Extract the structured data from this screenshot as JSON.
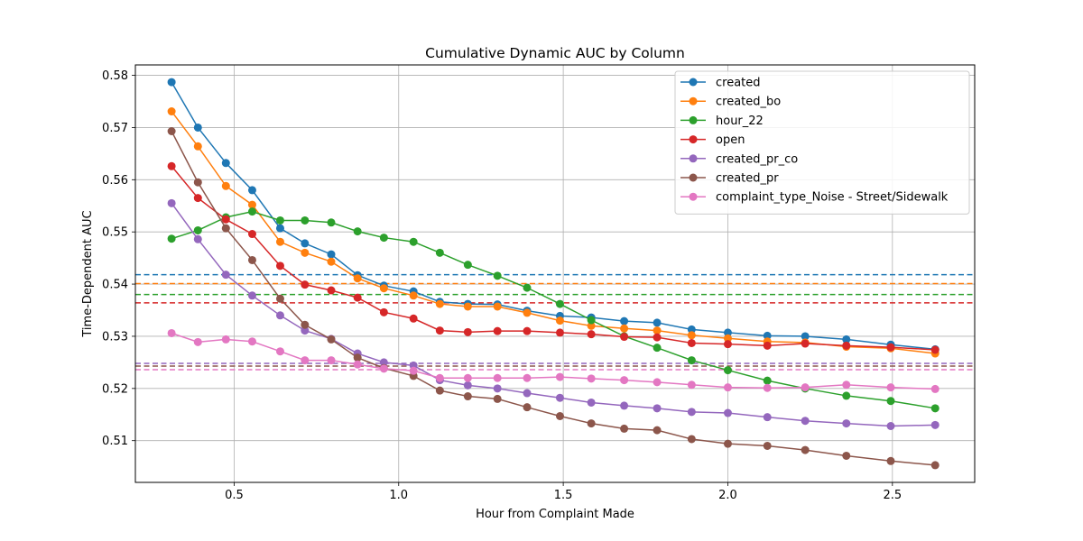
{
  "chart_data": {
    "type": "line",
    "title": "Cumulative Dynamic AUC by Column",
    "xlabel": "Hour from Complaint Made",
    "ylabel": "Time-Dependent AUC",
    "xlim": [
      0.2,
      2.75
    ],
    "ylim": [
      0.502,
      0.582
    ],
    "xticks": [
      0.5,
      1.0,
      1.5,
      2.0,
      2.5
    ],
    "xtick_labels": [
      "0.5",
      "1.0",
      "1.5",
      "2.0",
      "2.5"
    ],
    "yticks": [
      0.51,
      0.52,
      0.53,
      0.54,
      0.55,
      0.56,
      0.57,
      0.58
    ],
    "ytick_labels": [
      "0.51",
      "0.52",
      "0.53",
      "0.54",
      "0.55",
      "0.56",
      "0.57",
      "0.58"
    ],
    "grid": true,
    "legend_position": "top-right",
    "x": [
      0.31,
      0.39,
      0.475,
      0.555,
      0.64,
      0.715,
      0.795,
      0.875,
      0.955,
      1.045,
      1.125,
      1.21,
      1.3,
      1.39,
      1.49,
      1.585,
      1.685,
      1.785,
      1.89,
      2.0,
      2.12,
      2.235,
      2.36,
      2.495,
      2.63
    ],
    "series": [
      {
        "name": "created",
        "color": "#1f77b4",
        "values": [
          0.5787,
          0.57,
          0.5632,
          0.558,
          0.5507,
          0.5478,
          0.5457,
          0.5417,
          0.5397,
          0.5386,
          0.5366,
          0.5362,
          0.5361,
          0.5349,
          0.5339,
          0.5336,
          0.5329,
          0.5326,
          0.5313,
          0.5307,
          0.5301,
          0.53,
          0.5294,
          0.5284,
          0.5275
        ],
        "mean": 0.5418
      },
      {
        "name": "created_bo",
        "color": "#ff7f0e",
        "values": [
          0.5731,
          0.5664,
          0.5588,
          0.5552,
          0.5481,
          0.546,
          0.5443,
          0.5411,
          0.5392,
          0.5378,
          0.5362,
          0.5357,
          0.5357,
          0.5345,
          0.533,
          0.532,
          0.5315,
          0.5311,
          0.5302,
          0.5296,
          0.529,
          0.5288,
          0.528,
          0.5277,
          0.5267
        ],
        "mean": 0.5401
      },
      {
        "name": "hour_22",
        "color": "#2ca02c",
        "values": [
          0.5487,
          0.5503,
          0.5528,
          0.5539,
          0.5522,
          0.5522,
          0.5518,
          0.5501,
          0.5489,
          0.5481,
          0.546,
          0.5437,
          0.5416,
          0.5393,
          0.5362,
          0.5331,
          0.53,
          0.5278,
          0.5254,
          0.5235,
          0.5215,
          0.52,
          0.5186,
          0.5176,
          0.5162
        ],
        "mean": 0.538
      },
      {
        "name": "open",
        "color": "#d62728",
        "values": [
          0.5626,
          0.5565,
          0.5524,
          0.5496,
          0.5435,
          0.5399,
          0.5388,
          0.5374,
          0.5346,
          0.5334,
          0.5311,
          0.5308,
          0.531,
          0.531,
          0.5307,
          0.5304,
          0.5299,
          0.5298,
          0.5287,
          0.5285,
          0.5282,
          0.5286,
          0.5282,
          0.5279,
          0.5274
        ],
        "mean": 0.5364
      },
      {
        "name": "created_pr_co",
        "color": "#9467bd",
        "values": [
          0.5555,
          0.5486,
          0.5418,
          0.5378,
          0.534,
          0.5311,
          0.5295,
          0.5267,
          0.525,
          0.5244,
          0.5216,
          0.5206,
          0.52,
          0.5191,
          0.5182,
          0.5173,
          0.5167,
          0.5162,
          0.5155,
          0.5153,
          0.5145,
          0.5138,
          0.5133,
          0.5128,
          0.513
        ],
        "mean": 0.5248
      },
      {
        "name": "created_pr",
        "color": "#8c564b",
        "values": [
          0.5693,
          0.5595,
          0.5507,
          0.5446,
          0.5372,
          0.5322,
          0.5294,
          0.5259,
          0.5239,
          0.5224,
          0.5196,
          0.5185,
          0.518,
          0.5164,
          0.5147,
          0.5133,
          0.5123,
          0.512,
          0.5103,
          0.5094,
          0.509,
          0.5082,
          0.5071,
          0.5061,
          0.5053
        ],
        "mean": 0.5243
      },
      {
        "name": "complaint_type_Noise - Street/Sidewalk",
        "color": "#e377c2",
        "values": [
          0.5306,
          0.5289,
          0.5294,
          0.529,
          0.5271,
          0.5254,
          0.5254,
          0.5246,
          0.5238,
          0.5234,
          0.522,
          0.522,
          0.522,
          0.522,
          0.5222,
          0.5219,
          0.5216,
          0.5212,
          0.5207,
          0.5202,
          0.5201,
          0.5202,
          0.5207,
          0.5202,
          0.5199
        ],
        "mean": 0.5236
      }
    ]
  }
}
